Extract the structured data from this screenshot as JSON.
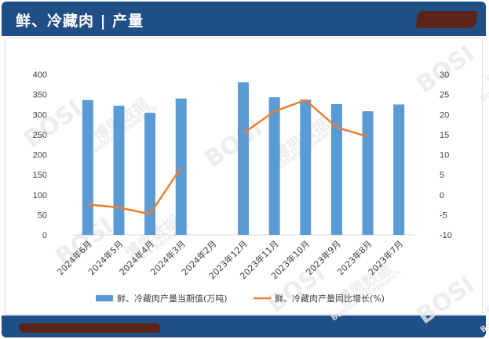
{
  "header": {
    "title": "鲜、冷藏肉 | 产量"
  },
  "watermark": {
    "brand": "BOSI",
    "cn": "博思数据",
    "en": "BosiData Research"
  },
  "chart_data": {
    "type": "bar",
    "categories": [
      "2024年6月",
      "2024年5月",
      "2024年4月",
      "2024年3月",
      "2024年2月",
      "2023年12月",
      "2023年11月",
      "2023年10月",
      "2023年9月",
      "2023年8月",
      "2023年7月"
    ],
    "series": [
      {
        "name": "鲜、冷藏肉产量当期值(万吨)",
        "type": "bar",
        "axis": "left",
        "color": "#5b9bd5",
        "values": [
          336,
          322,
          304,
          340,
          null,
          380,
          343,
          337,
          326,
          308,
          325
        ]
      },
      {
        "name": "鲜、冷藏肉产量同比增长(%)",
        "type": "line",
        "axis": "right",
        "color": "#ed7d31",
        "values": [
          -2.4,
          -3.2,
          -4.8,
          6.8,
          null,
          15.3,
          20.8,
          23.6,
          16.8,
          14.5,
          null
        ]
      }
    ],
    "y_left": {
      "min": 0,
      "max": 400,
      "ticks": [
        0,
        50,
        100,
        150,
        200,
        250,
        300,
        350,
        400
      ]
    },
    "y_right": {
      "min": -10,
      "max": 30,
      "ticks": [
        -10,
        -5,
        0,
        5,
        10,
        15,
        20,
        25,
        30
      ]
    },
    "legend": "bottom",
    "grid": false
  }
}
